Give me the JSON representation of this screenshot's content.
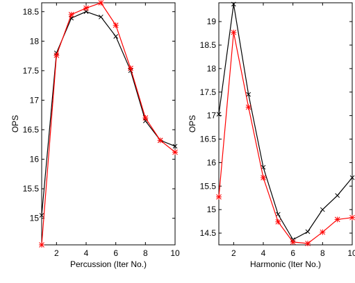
{
  "chart_data": [
    {
      "type": "line",
      "xlabel": "Percussion (Iter No.)",
      "ylabel": "OPS",
      "xlim": [
        1,
        10
      ],
      "ylim": [
        14.55,
        18.65
      ],
      "xticks": [
        2,
        4,
        6,
        8,
        10
      ],
      "xtick_labels": [
        "2",
        "4",
        "6",
        "8",
        "10"
      ],
      "yticks": [
        15,
        15.5,
        16,
        16.5,
        17,
        17.5,
        18,
        18.5
      ],
      "ytick_labels": [
        "15",
        "15.5",
        "16",
        "16.5",
        "17",
        "17.5",
        "18",
        "18.5"
      ],
      "grid": false,
      "series": [
        {
          "color": "#000000",
          "marker": "x",
          "x": [
            1,
            2,
            3,
            4,
            5,
            6,
            7,
            8,
            9,
            10
          ],
          "y": [
            15.05,
            17.8,
            18.39,
            18.5,
            18.41,
            18.08,
            17.5,
            16.65,
            16.32,
            16.22
          ]
        },
        {
          "color": "#ff0000",
          "marker": "*",
          "x": [
            1,
            2,
            3,
            4,
            5,
            6,
            7,
            8,
            9,
            10
          ],
          "y": [
            14.55,
            17.76,
            18.45,
            18.56,
            18.65,
            18.27,
            17.54,
            16.7,
            16.32,
            16.12
          ]
        }
      ]
    },
    {
      "type": "line",
      "xlabel": "Harmonic (Iter No.)",
      "ylabel": "OPS",
      "xlim": [
        1,
        10
      ],
      "ylim": [
        14.25,
        19.4
      ],
      "xticks": [
        2,
        4,
        6,
        8,
        10
      ],
      "xtick_labels": [
        "2",
        "4",
        "6",
        "8",
        "10"
      ],
      "yticks": [
        14.5,
        15,
        15.5,
        16,
        16.5,
        17,
        17.5,
        18,
        18.5,
        19
      ],
      "ytick_labels": [
        "14.5",
        "15",
        "15.5",
        "16",
        "16.5",
        "17",
        "17.5",
        "18",
        "18.5",
        "19"
      ],
      "grid": false,
      "series": [
        {
          "color": "#000000",
          "marker": "x",
          "x": [
            1,
            2,
            3,
            4,
            5,
            6,
            7,
            8,
            9,
            10
          ],
          "y": [
            17.03,
            19.37,
            17.45,
            15.9,
            14.9,
            14.36,
            14.53,
            15.0,
            15.3,
            15.68
          ]
        },
        {
          "color": "#ff0000",
          "marker": "*",
          "x": [
            1,
            2,
            3,
            4,
            5,
            6,
            7,
            8,
            9,
            10
          ],
          "y": [
            15.27,
            18.77,
            17.18,
            15.68,
            14.74,
            14.31,
            14.28,
            14.52,
            14.79,
            14.83
          ]
        }
      ]
    }
  ]
}
